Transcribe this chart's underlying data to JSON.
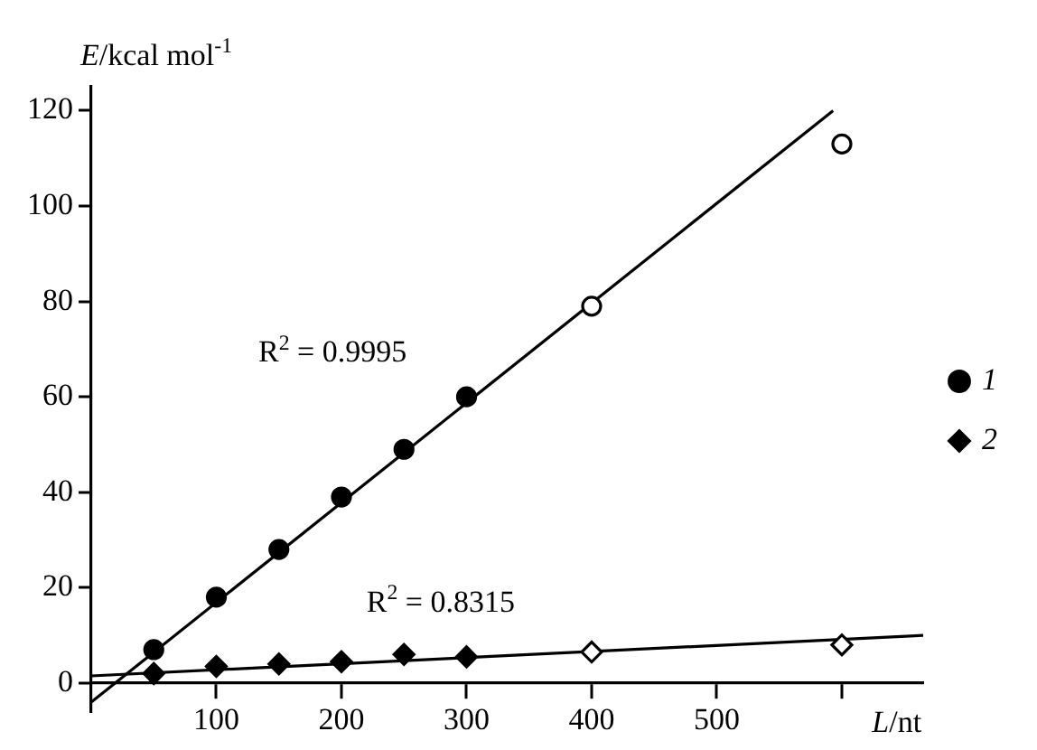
{
  "chart_data": {
    "type": "scatter",
    "xlabel": "L/nt",
    "ylabel": "E/kcal mol$^{-1}$",
    "xlim": [
      0,
      665
    ],
    "ylim": [
      -6,
      125
    ],
    "xticks": [
      100,
      200,
      300,
      400,
      500,
      {
        "value": 600,
        "label": null
      }
    ],
    "yticks": [
      0,
      20,
      40,
      60,
      80,
      100,
      120
    ],
    "grid": false,
    "legend": "right",
    "series": [
      {
        "name": "1",
        "marker": "circle",
        "color": "#000000",
        "x": [
          50,
          100,
          150,
          200,
          250,
          300,
          400,
          600
        ],
        "values": [
          7,
          18,
          28,
          39,
          49,
          60,
          79,
          113
        ],
        "colors": [
          "#000000",
          "#000000",
          "#000000",
          "#000000",
          "#000000",
          "#000000",
          "#ffffff",
          "#ffffff"
        ]
      },
      {
        "name": "2",
        "marker": "diamond",
        "color": "#000000",
        "x": [
          50,
          100,
          150,
          200,
          250,
          300,
          400,
          600
        ],
        "values": [
          2,
          3.5,
          4,
          4.5,
          6,
          5.5,
          6.5,
          8
        ],
        "colors": [
          "#000000",
          "#000000",
          "#000000",
          "#000000",
          "#000000",
          "#000000",
          "#ffffff",
          "#ffffff"
        ]
      },
      {
        "type": "line",
        "marker": "none",
        "color": "#000000",
        "x": [
          0,
          593
        ],
        "values": [
          -4,
          120
        ]
      },
      {
        "type": "line",
        "marker": "none",
        "color": "#000000",
        "x": [
          0,
          665
        ],
        "values": [
          1.5,
          10
        ]
      }
    ],
    "annotations": [
      "R$^{2}$ = 0.9995",
      "R$^{2}$ = 0.8315"
    ]
  }
}
